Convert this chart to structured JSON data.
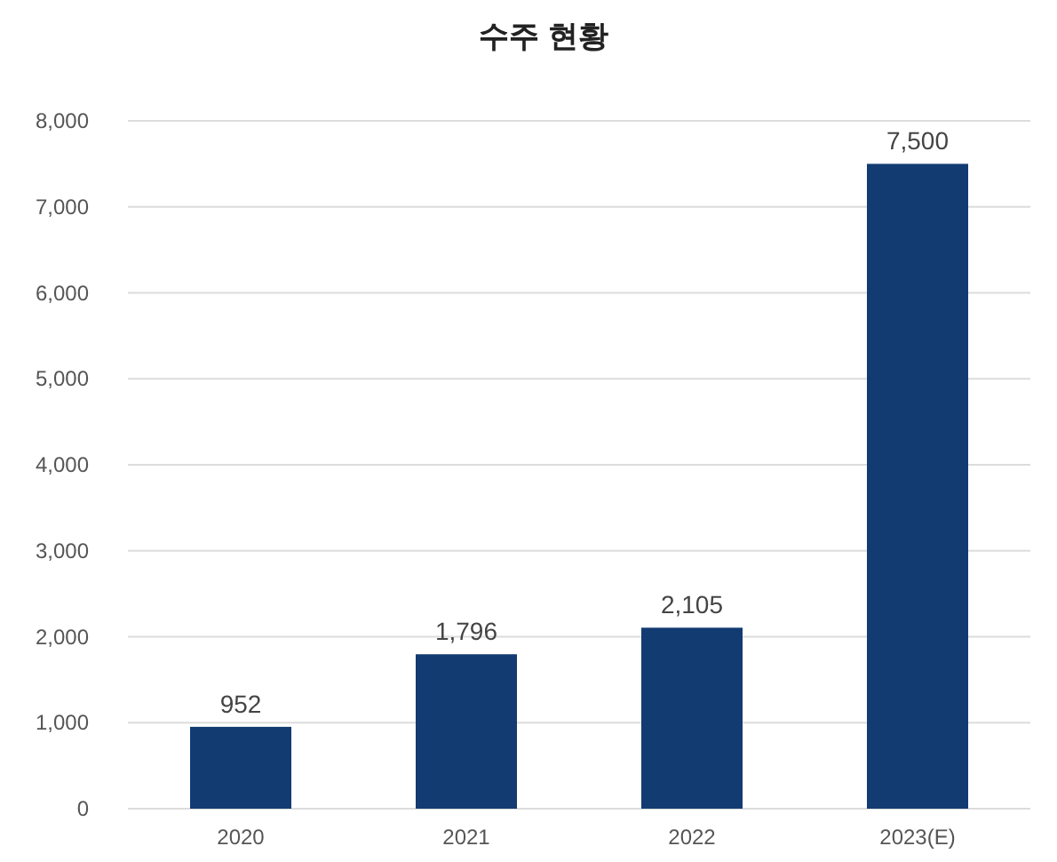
{
  "chart_data": {
    "type": "bar",
    "title": "수주 현황",
    "categories": [
      "2020",
      "2021",
      "2022",
      "2023(E)"
    ],
    "values": [
      952,
      1796,
      2105,
      7500
    ],
    "value_labels": [
      "952",
      "1,796",
      "2,105",
      "7,500"
    ],
    "color": "#123b72",
    "ylim": [
      0,
      8000
    ],
    "yticks": [
      {
        "value": 0,
        "label": "0"
      },
      {
        "value": 1000,
        "label": "1,000"
      },
      {
        "value": 2000,
        "label": "2,000"
      },
      {
        "value": 3000,
        "label": "3,000"
      },
      {
        "value": 4000,
        "label": "4,000"
      },
      {
        "value": 5000,
        "label": "5,000"
      },
      {
        "value": 6000,
        "label": "6,000"
      },
      {
        "value": 7000,
        "label": "7,000"
      },
      {
        "value": 8000,
        "label": "8,000"
      }
    ],
    "grid": "y"
  }
}
